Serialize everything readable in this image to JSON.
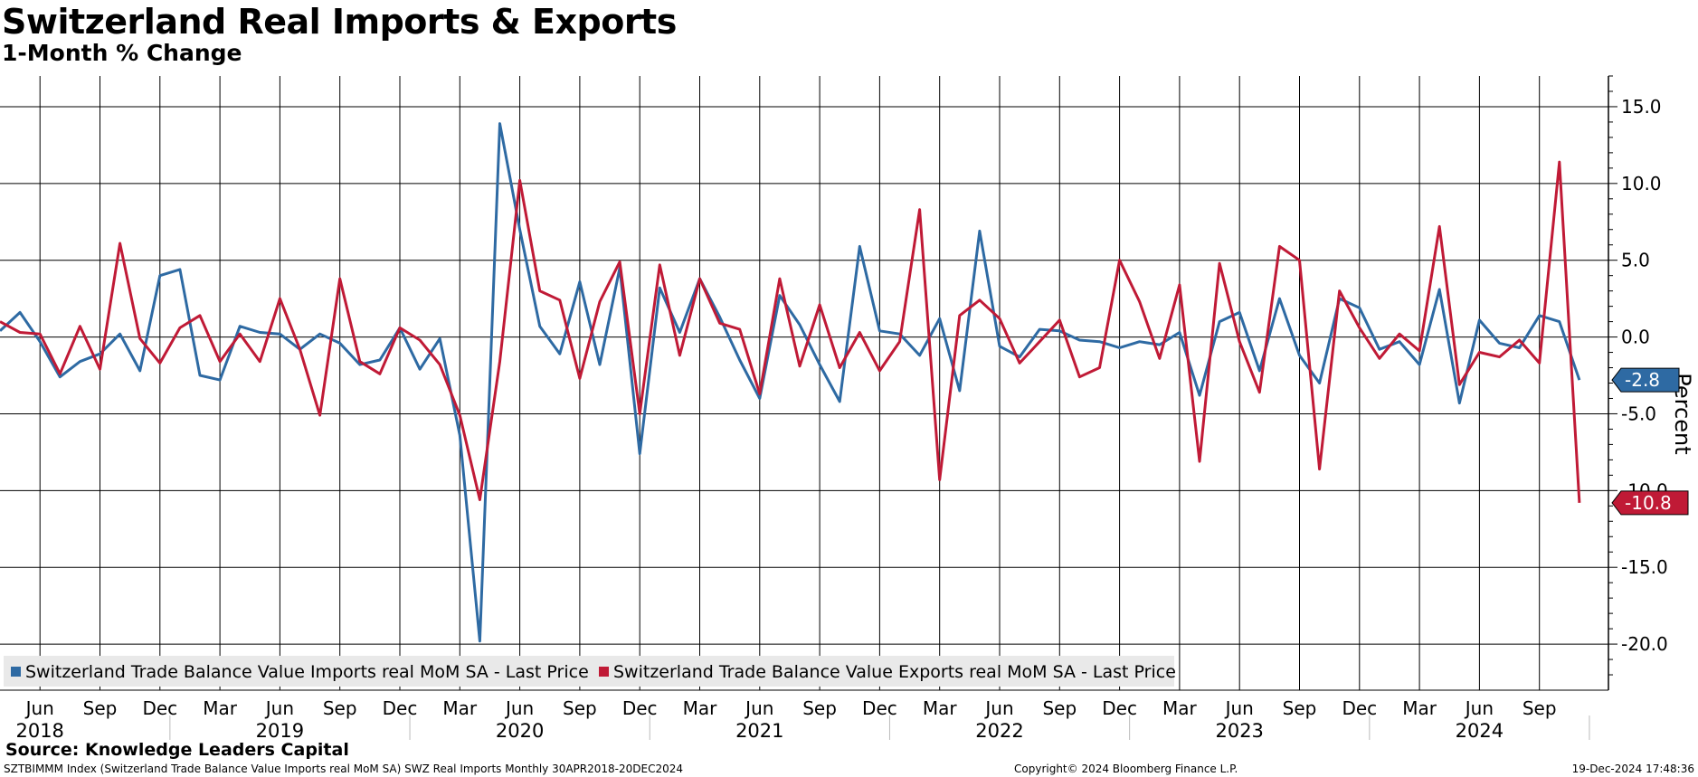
{
  "chart_data": {
    "type": "line",
    "title": "Switzerland Real Imports & Exports",
    "subtitle": "1-Month % Change",
    "ylabel": "Percent",
    "ylim": [
      -23,
      17
    ],
    "yticks": [
      15,
      10,
      5,
      0,
      -5,
      -10,
      -15,
      -20
    ],
    "ytick_labels": [
      "15.0",
      "10.0",
      "5.0",
      "0.0",
      "-5.0",
      "-10.0",
      "-15.0",
      "-20.0"
    ],
    "x_start": "2018-04",
    "month_ticks": [
      {
        "i": 2,
        "label": "Jun"
      },
      {
        "i": 5,
        "label": "Sep"
      },
      {
        "i": 8,
        "label": "Dec"
      },
      {
        "i": 11,
        "label": "Mar"
      },
      {
        "i": 14,
        "label": "Jun"
      },
      {
        "i": 17,
        "label": "Sep"
      },
      {
        "i": 20,
        "label": "Dec"
      },
      {
        "i": 23,
        "label": "Mar"
      },
      {
        "i": 26,
        "label": "Jun"
      },
      {
        "i": 29,
        "label": "Sep"
      },
      {
        "i": 32,
        "label": "Dec"
      },
      {
        "i": 35,
        "label": "Mar"
      },
      {
        "i": 38,
        "label": "Jun"
      },
      {
        "i": 41,
        "label": "Sep"
      },
      {
        "i": 44,
        "label": "Dec"
      },
      {
        "i": 47,
        "label": "Mar"
      },
      {
        "i": 50,
        "label": "Jun"
      },
      {
        "i": 53,
        "label": "Sep"
      },
      {
        "i": 56,
        "label": "Dec"
      },
      {
        "i": 59,
        "label": "Mar"
      },
      {
        "i": 62,
        "label": "Jun"
      },
      {
        "i": 65,
        "label": "Sep"
      },
      {
        "i": 68,
        "label": "Dec"
      },
      {
        "i": 71,
        "label": "Mar"
      },
      {
        "i": 74,
        "label": "Jun"
      },
      {
        "i": 77,
        "label": "Sep"
      }
    ],
    "year_labels": [
      {
        "i": 2,
        "label": "2018"
      },
      {
        "i": 14,
        "label": "2019"
      },
      {
        "i": 26,
        "label": "2020"
      },
      {
        "i": 38,
        "label": "2021"
      },
      {
        "i": 50,
        "label": "2022"
      },
      {
        "i": 62,
        "label": "2023"
      },
      {
        "i": 74,
        "label": "2024"
      }
    ],
    "year_boundaries": [
      8.5,
      20.5,
      32.5,
      44.5,
      56.5,
      68.5,
      79.5
    ],
    "series": [
      {
        "name": "Switzerland Trade Balance Value Imports real MoM SA - Last Price",
        "color": "#2e6aa3",
        "last_value_label": "-2.8",
        "values": [
          0.4,
          1.6,
          -0.3,
          -2.6,
          -1.6,
          -1.1,
          0.2,
          -2.2,
          4.0,
          4.4,
          -2.5,
          -2.8,
          0.7,
          0.3,
          0.2,
          -0.8,
          0.2,
          -0.4,
          -1.8,
          -1.5,
          0.6,
          -2.1,
          -0.1,
          -6.4,
          -19.8,
          13.9,
          7.0,
          0.7,
          -1.1,
          3.6,
          -1.8,
          4.5,
          -7.6,
          3.2,
          0.3,
          3.8,
          1.3,
          -1.5,
          -4.0,
          2.7,
          0.8,
          -1.8,
          -4.2,
          5.9,
          0.4,
          0.2,
          -1.2,
          1.2,
          -3.5,
          6.9,
          -0.6,
          -1.3,
          0.5,
          0.4,
          -0.2,
          -0.3,
          -0.7,
          -0.3,
          -0.5,
          0.3,
          -3.8,
          1.0,
          1.6,
          -2.2,
          2.5,
          -1.2,
          -3.0,
          2.5,
          1.9,
          -0.8,
          -0.3,
          -1.8,
          3.1,
          -4.3,
          1.1,
          -0.4,
          -0.7,
          1.4,
          1.0,
          -2.8
        ]
      },
      {
        "name": "Switzerland Trade Balance Value Exports real MoM SA - Last Price",
        "color": "#c01a36",
        "last_value_label": "-10.8",
        "values": [
          1.0,
          0.3,
          0.2,
          -2.4,
          0.7,
          -2.1,
          6.1,
          -0.1,
          -1.7,
          0.6,
          1.4,
          -1.6,
          0.2,
          -1.6,
          2.5,
          -0.8,
          -5.1,
          3.8,
          -1.6,
          -2.4,
          0.6,
          -0.2,
          -1.8,
          -5.1,
          -10.6,
          -1.6,
          10.2,
          3.0,
          2.4,
          -2.7,
          2.3,
          4.9,
          -5.0,
          4.7,
          -1.2,
          3.8,
          0.9,
          0.5,
          -3.7,
          3.8,
          -1.9,
          2.1,
          -2.0,
          0.3,
          -2.2,
          -0.3,
          8.3,
          -9.3,
          1.4,
          2.4,
          1.2,
          -1.7,
          -0.3,
          1.1,
          -2.6,
          -2.0,
          5.0,
          2.3,
          -1.4,
          3.4,
          -8.1,
          4.8,
          -0.3,
          -3.6,
          5.9,
          5.0,
          -8.6,
          3.0,
          0.6,
          -1.4,
          0.2,
          -0.9,
          7.2,
          -3.1,
          -1.0,
          -1.3,
          -0.2,
          -1.7,
          11.4,
          -10.8
        ]
      }
    ]
  },
  "source": "Source:  Knowledge Leaders Capital",
  "footer": {
    "left": "SZTBIMMM Index (Switzerland Trade Balance Value Imports real MoM SA) SWZ Real Imports  Monthly 30APR2018-20DEC2024",
    "middle": "Copyright© 2024 Bloomberg Finance L.P.",
    "right": "19-Dec-2024 17:48:36"
  }
}
